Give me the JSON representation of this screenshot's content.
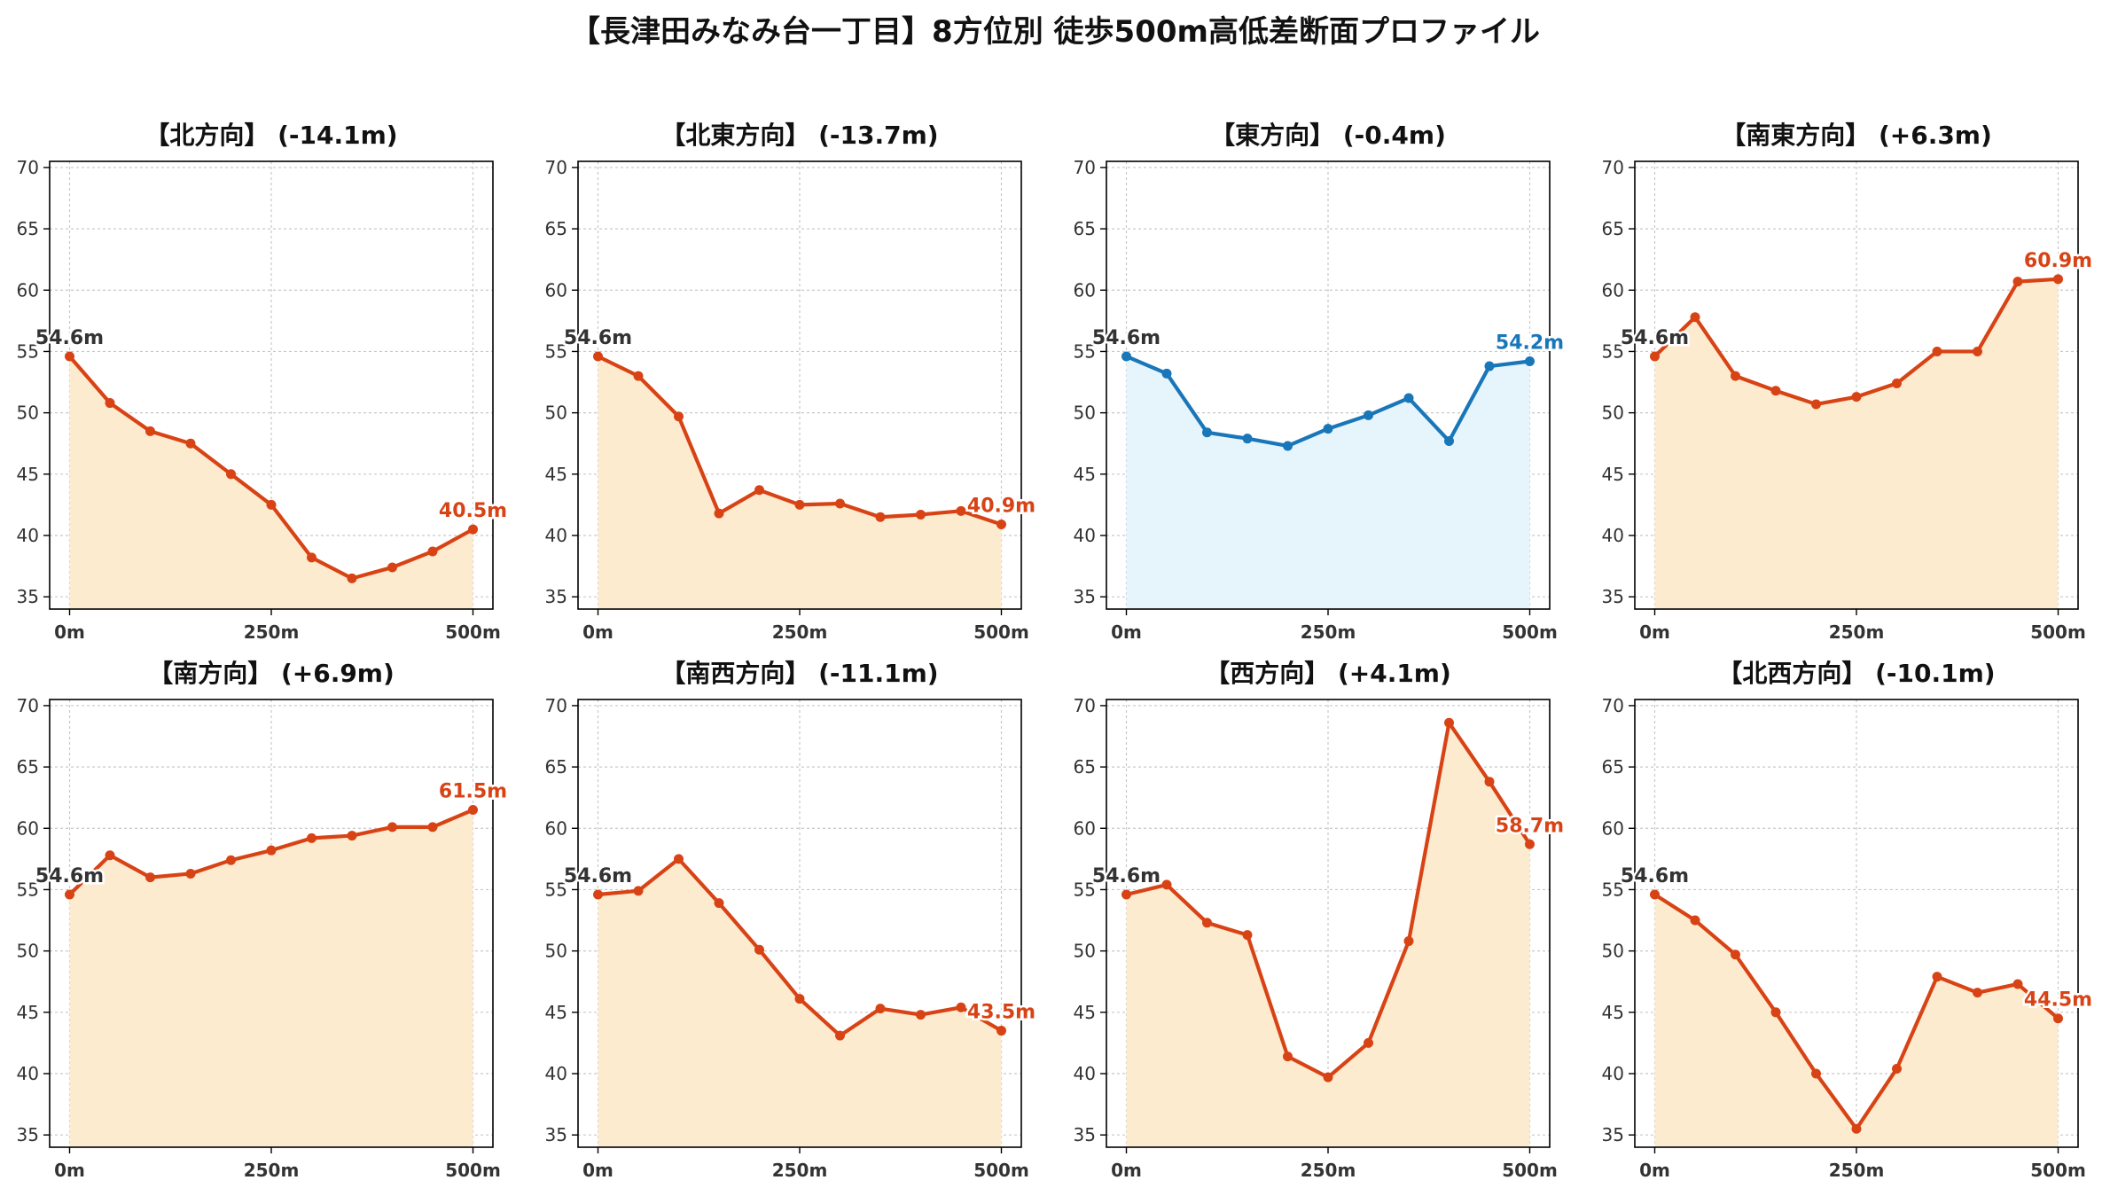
{
  "figure": {
    "title": "【長津田みなみ台一丁目】8方位別 徒歩500m高低差断面プロファイル"
  },
  "colors": {
    "down_or_up_line": "#d84315",
    "down_or_up_fill": "#fdebd0",
    "flat_line": "#1976b8",
    "flat_fill": "#e6f4fb",
    "start_label": "#333333"
  },
  "chart_data": [
    {
      "type": "line",
      "title": "【北方向】 (-14.1m)",
      "xticks": [
        "0m",
        "250m",
        "500m"
      ],
      "xlim": [
        0,
        500
      ],
      "ylim": [
        34,
        70.5
      ],
      "yticks": [
        35,
        40,
        45,
        50,
        55,
        60,
        65,
        70
      ],
      "grid": true,
      "x": [
        0,
        50,
        100,
        150,
        200,
        250,
        300,
        350,
        400,
        450,
        500
      ],
      "y": [
        54.6,
        50.8,
        48.5,
        47.5,
        45.0,
        42.5,
        38.2,
        36.5,
        37.4,
        38.7,
        40.5
      ],
      "start_label": "54.6m",
      "end_label": "40.5m",
      "style": "orange"
    },
    {
      "type": "line",
      "title": "【北東方向】 (-13.7m)",
      "xticks": [
        "0m",
        "250m",
        "500m"
      ],
      "xlim": [
        0,
        500
      ],
      "ylim": [
        34,
        70.5
      ],
      "yticks": [
        35,
        40,
        45,
        50,
        55,
        60,
        65,
        70
      ],
      "grid": true,
      "x": [
        0,
        50,
        100,
        150,
        200,
        250,
        300,
        350,
        400,
        450,
        500
      ],
      "y": [
        54.6,
        53.0,
        49.7,
        41.8,
        43.7,
        42.5,
        42.6,
        41.5,
        41.7,
        42.0,
        40.9
      ],
      "start_label": "54.6m",
      "end_label": "40.9m",
      "style": "orange"
    },
    {
      "type": "line",
      "title": "【東方向】 (-0.4m)",
      "xticks": [
        "0m",
        "250m",
        "500m"
      ],
      "xlim": [
        0,
        500
      ],
      "ylim": [
        34,
        70.5
      ],
      "yticks": [
        35,
        40,
        45,
        50,
        55,
        60,
        65,
        70
      ],
      "grid": true,
      "x": [
        0,
        50,
        100,
        150,
        200,
        250,
        300,
        350,
        400,
        450,
        500
      ],
      "y": [
        54.6,
        53.2,
        48.4,
        47.9,
        47.3,
        48.7,
        49.8,
        51.2,
        47.7,
        53.8,
        54.2
      ],
      "start_label": "54.6m",
      "end_label": "54.2m",
      "style": "blue"
    },
    {
      "type": "line",
      "title": "【南東方向】 (+6.3m)",
      "xticks": [
        "0m",
        "250m",
        "500m"
      ],
      "xlim": [
        0,
        500
      ],
      "ylim": [
        34,
        70.5
      ],
      "yticks": [
        35,
        40,
        45,
        50,
        55,
        60,
        65,
        70
      ],
      "grid": true,
      "x": [
        0,
        50,
        100,
        150,
        200,
        250,
        300,
        350,
        400,
        450,
        500
      ],
      "y": [
        54.6,
        57.8,
        53.0,
        51.8,
        50.7,
        51.3,
        52.4,
        55.0,
        55.0,
        60.7,
        60.9
      ],
      "start_label": "54.6m",
      "end_label": "60.9m",
      "style": "orange"
    },
    {
      "type": "line",
      "title": "【南方向】 (+6.9m)",
      "xticks": [
        "0m",
        "250m",
        "500m"
      ],
      "xlim": [
        0,
        500
      ],
      "ylim": [
        34,
        70.5
      ],
      "yticks": [
        35,
        40,
        45,
        50,
        55,
        60,
        65,
        70
      ],
      "grid": true,
      "x": [
        0,
        50,
        100,
        150,
        200,
        250,
        300,
        350,
        400,
        450,
        500
      ],
      "y": [
        54.6,
        57.8,
        56.0,
        56.3,
        57.4,
        58.2,
        59.2,
        59.4,
        60.1,
        60.1,
        61.5
      ],
      "start_label": "54.6m",
      "end_label": "61.5m",
      "style": "orange"
    },
    {
      "type": "line",
      "title": "【南西方向】 (-11.1m)",
      "xticks": [
        "0m",
        "250m",
        "500m"
      ],
      "xlim": [
        0,
        500
      ],
      "ylim": [
        34,
        70.5
      ],
      "yticks": [
        35,
        40,
        45,
        50,
        55,
        60,
        65,
        70
      ],
      "grid": true,
      "x": [
        0,
        50,
        100,
        150,
        200,
        250,
        300,
        350,
        400,
        450,
        500
      ],
      "y": [
        54.6,
        54.9,
        57.5,
        53.9,
        50.1,
        46.1,
        43.1,
        45.3,
        44.8,
        45.4,
        43.5
      ],
      "start_label": "54.6m",
      "end_label": "43.5m",
      "style": "orange"
    },
    {
      "type": "line",
      "title": "【西方向】 (+4.1m)",
      "xticks": [
        "0m",
        "250m",
        "500m"
      ],
      "xlim": [
        0,
        500
      ],
      "ylim": [
        34,
        70.5
      ],
      "yticks": [
        35,
        40,
        45,
        50,
        55,
        60,
        65,
        70
      ],
      "grid": true,
      "x": [
        0,
        50,
        100,
        150,
        200,
        250,
        300,
        350,
        400,
        450,
        500
      ],
      "y": [
        54.6,
        55.4,
        52.3,
        51.3,
        41.4,
        39.7,
        42.5,
        50.8,
        68.6,
        63.8,
        58.7
      ],
      "start_label": "54.6m",
      "end_label": "58.7m",
      "style": "orange"
    },
    {
      "type": "line",
      "title": "【北西方向】 (-10.1m)",
      "xticks": [
        "0m",
        "250m",
        "500m"
      ],
      "xlim": [
        0,
        500
      ],
      "ylim": [
        34,
        70.5
      ],
      "yticks": [
        35,
        40,
        45,
        50,
        55,
        60,
        65,
        70
      ],
      "grid": true,
      "x": [
        0,
        50,
        100,
        150,
        200,
        250,
        300,
        350,
        400,
        450,
        500
      ],
      "y": [
        54.6,
        52.5,
        49.7,
        45.0,
        40.0,
        35.5,
        40.4,
        47.9,
        46.6,
        47.3,
        44.5
      ],
      "start_label": "54.6m",
      "end_label": "44.5m",
      "style": "orange"
    }
  ]
}
